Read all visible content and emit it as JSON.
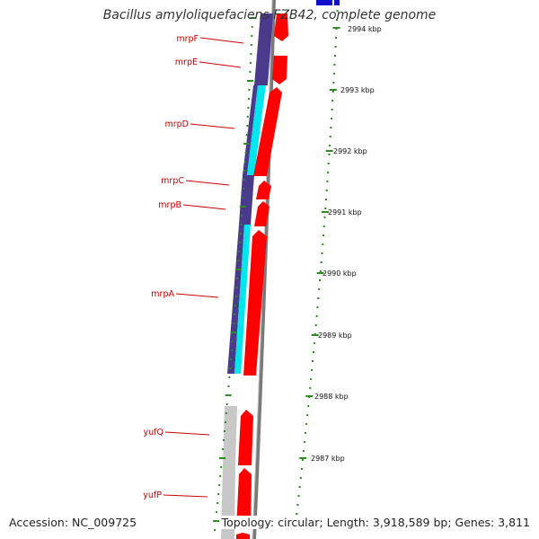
{
  "title": "Bacillus amyloliquefaciens FZB42, complete genome",
  "footer": {
    "accession": "Accession: NC_009725",
    "topology": "Topology: circular; Length: 3,918,589 bp; Genes: 3,811"
  },
  "ruler": {
    "labels": [
      "2994 kbp",
      "2993 kbp",
      "2992 kbp",
      "2991 kbp",
      "2990 kbp",
      "2989 kbp",
      "2988 kbp",
      "2987 kbp"
    ]
  },
  "gene_labels": [
    "mrpF",
    "mrpE",
    "mrpD",
    "mrpC",
    "mrpB",
    "mrpA",
    "yufQ",
    "yufP"
  ],
  "colors": {
    "cds": "#ff0000",
    "cog_navy": "#4a3a8c",
    "cog_cyan": "#00e5ee",
    "cog_gray": "#c8c8c8",
    "backbone": "#808080",
    "tick": "#2e8b22",
    "label": "#cc0000",
    "blue_feature": "#1010cc"
  }
}
